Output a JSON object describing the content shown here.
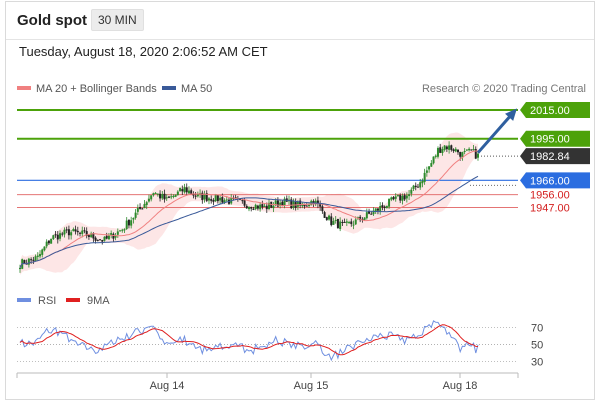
{
  "header": {
    "instrument": "Gold spot",
    "timeframe": "30 MIN",
    "datetime": "Tuesday, August 18, 2020 2:06:52 AM CET"
  },
  "legend": {
    "ma_bb": "MA 20 + Bollinger Bands",
    "ma50": "MA 50",
    "copyright": "Research © 2020 Trading Central",
    "rsi": "RSI",
    "rsi_ma": "9MA"
  },
  "colors": {
    "ma_bb": "#f08080",
    "bb_fill": "#fde0e0",
    "ma50": "#3a5a99",
    "target": "#4ca20a",
    "pivot": "#2b6de0",
    "support": "#e06060",
    "support_text": "#d42020",
    "last": "#333333",
    "arrow": "#2f5f9f",
    "rsi": "#6f8fe0",
    "rsi_ma": "#e02020",
    "candle_up": "#2c8a2c",
    "candle_down": "#222222"
  },
  "chart_data": [
    {
      "type": "candlestick",
      "ylim": [
        1900,
        2022
      ],
      "x_labels": [
        "Aug 14",
        "Aug 15",
        "Aug 18"
      ],
      "levels": [
        {
          "label": "2015.00",
          "value": 2015.0,
          "kind": "target"
        },
        {
          "label": "1995.00",
          "value": 1995.0,
          "kind": "target"
        },
        {
          "label": "1982.84",
          "value": 1982.84,
          "kind": "last"
        },
        {
          "label": "1966.00",
          "value": 1966.0,
          "kind": "pivot"
        },
        {
          "label": "1956.00",
          "value": 1956.0,
          "kind": "support"
        },
        {
          "label": "1947.00",
          "value": 1947.0,
          "kind": "support"
        }
      ],
      "anchors": [
        [
          0,
          1908
        ],
        [
          8,
          1912
        ],
        [
          14,
          1926
        ],
        [
          22,
          1930
        ],
        [
          30,
          1928
        ],
        [
          38,
          1924
        ],
        [
          46,
          1932
        ],
        [
          54,
          1946
        ],
        [
          60,
          1958
        ],
        [
          66,
          1952
        ],
        [
          74,
          1960
        ],
        [
          80,
          1955
        ],
        [
          90,
          1953
        ],
        [
          100,
          1950
        ],
        [
          110,
          1947
        ],
        [
          118,
          1951
        ],
        [
          126,
          1948
        ],
        [
          132,
          1952
        ],
        [
          140,
          1937
        ],
        [
          146,
          1934
        ],
        [
          152,
          1938
        ],
        [
          160,
          1945
        ],
        [
          168,
          1952
        ],
        [
          175,
          1956
        ],
        [
          180,
          1965
        ],
        [
          185,
          1978
        ],
        [
          188,
          1987
        ],
        [
          191,
          1990
        ],
        [
          195,
          1988
        ],
        [
          199,
          1984
        ],
        [
          203,
          1986
        ],
        [
          206,
          1983
        ]
      ],
      "n_candles": 207,
      "rsi_ylim": [
        20,
        85
      ],
      "rsi_levels": [
        70,
        50,
        30
      ]
    }
  ]
}
